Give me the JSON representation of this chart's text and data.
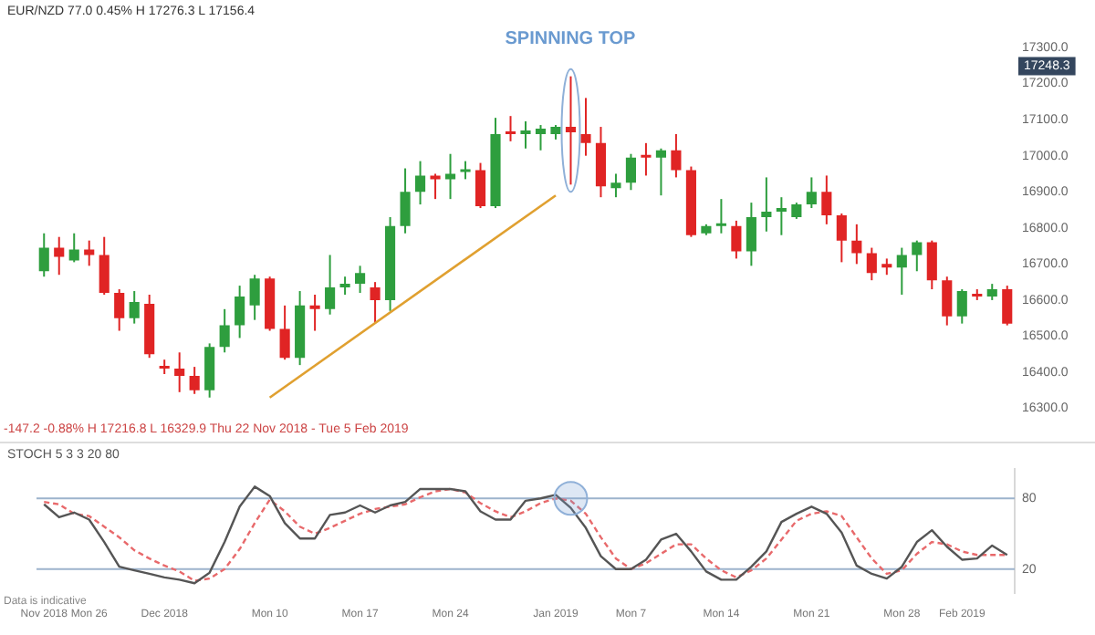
{
  "chart_data": [
    {
      "type": "candlestick",
      "categories": [
        "Nov 2018",
        null,
        null,
        "Mon 26",
        null,
        null,
        null,
        null,
        "Dec 2018",
        null,
        null,
        null,
        null,
        null,
        null,
        "Mon 10",
        null,
        null,
        null,
        null,
        null,
        "Mon 17",
        null,
        null,
        null,
        null,
        null,
        "Mon 24",
        null,
        null,
        null,
        null,
        null,
        null,
        "Jan 2019",
        null,
        null,
        null,
        null,
        "Mon 7",
        null,
        null,
        null,
        null,
        null,
        "Mon 14",
        null,
        null,
        null,
        null,
        null,
        "Mon 21",
        null,
        null,
        null,
        null,
        null,
        "Mon 28",
        null,
        null,
        null,
        "Feb 2019",
        null,
        null,
        null
      ],
      "ohlc": [
        [
          16680,
          16785,
          16665,
          16745
        ],
        [
          16745,
          16775,
          16670,
          16720
        ],
        [
          16710,
          16785,
          16705,
          16740
        ],
        [
          16740,
          16765,
          16695,
          16725
        ],
        [
          16725,
          16775,
          16615,
          16620
        ],
        [
          16620,
          16630,
          16515,
          16550
        ],
        [
          16550,
          16625,
          16535,
          16595
        ],
        [
          16590,
          16615,
          16440,
          16450
        ],
        [
          16415,
          16435,
          16395,
          16410
        ],
        [
          16410,
          16455,
          16345,
          16390
        ],
        [
          16390,
          16415,
          16340,
          16350
        ],
        [
          16350,
          16480,
          16330,
          16470
        ],
        [
          16470,
          16575,
          16455,
          16530
        ],
        [
          16530,
          16640,
          16495,
          16610
        ],
        [
          16585,
          16670,
          16545,
          16660
        ],
        [
          16660,
          16665,
          16515,
          16520
        ],
        [
          16520,
          16585,
          16435,
          16440
        ],
        [
          16440,
          16625,
          16420,
          16585
        ],
        [
          16585,
          16615,
          16515,
          16575
        ],
        [
          16575,
          16725,
          16560,
          16635
        ],
        [
          16635,
          16665,
          16615,
          16645
        ],
        [
          16645,
          16695,
          16620,
          16675
        ],
        [
          16635,
          16650,
          16535,
          16600
        ],
        [
          16600,
          16830,
          16570,
          16805
        ],
        [
          16805,
          16965,
          16785,
          16900
        ],
        [
          16900,
          16985,
          16865,
          16945
        ],
        [
          16945,
          16950,
          16880,
          16935
        ],
        [
          16935,
          17005,
          16880,
          16950
        ],
        [
          16955,
          16985,
          16935,
          16960
        ],
        [
          16960,
          16980,
          16855,
          16860
        ],
        [
          16860,
          17105,
          16855,
          17060
        ],
        [
          17065,
          17110,
          17040,
          17060
        ],
        [
          17060,
          17095,
          17020,
          17070
        ],
        [
          17060,
          17085,
          17015,
          17075
        ],
        [
          17060,
          17085,
          17045,
          17080
        ],
        [
          17080,
          17220,
          16920,
          17065
        ],
        [
          17060,
          17160,
          17000,
          17035
        ],
        [
          17035,
          17080,
          16885,
          16915
        ],
        [
          16910,
          16950,
          16885,
          16925
        ],
        [
          16925,
          17005,
          16905,
          16995
        ],
        [
          17000,
          17035,
          16945,
          16995
        ],
        [
          16995,
          17020,
          16890,
          17015
        ],
        [
          17015,
          17060,
          16940,
          16960
        ],
        [
          16960,
          16970,
          16775,
          16780
        ],
        [
          16785,
          16810,
          16780,
          16805
        ],
        [
          16805,
          16880,
          16785,
          16810
        ],
        [
          16805,
          16820,
          16715,
          16735
        ],
        [
          16735,
          16870,
          16695,
          16830
        ],
        [
          16830,
          16940,
          16790,
          16845
        ],
        [
          16845,
          16885,
          16780,
          16855
        ],
        [
          16830,
          16870,
          16825,
          16865
        ],
        [
          16865,
          16940,
          16855,
          16900
        ],
        [
          16900,
          16945,
          16810,
          16835
        ],
        [
          16835,
          16840,
          16705,
          16765
        ],
        [
          16765,
          16810,
          16700,
          16730
        ],
        [
          16730,
          16745,
          16655,
          16675
        ],
        [
          16700,
          16715,
          16670,
          16690
        ],
        [
          16690,
          16745,
          16615,
          16725
        ],
        [
          16725,
          16765,
          16680,
          16760
        ],
        [
          16760,
          16765,
          16630,
          16655
        ],
        [
          16655,
          16665,
          16530,
          16555
        ],
        [
          16555,
          16630,
          16535,
          16625
        ],
        [
          16615,
          16630,
          16600,
          16610
        ],
        [
          16610,
          16645,
          16600,
          16630
        ],
        [
          16630,
          16640,
          16530,
          16535
        ]
      ],
      "colors": [
        "#2e9e3e",
        "#e02424",
        "#2e9e3e",
        "#e02424",
        "#e02424",
        "#e02424",
        "#2e9e3e",
        "#e02424",
        "#e02424",
        "#e02424",
        "#e02424",
        "#2e9e3e",
        "#2e9e3e",
        "#2e9e3e",
        "#2e9e3e",
        "#e02424",
        "#e02424",
        "#2e9e3e",
        "#e02424",
        "#2e9e3e",
        "#2e9e3e",
        "#2e9e3e",
        "#e02424",
        "#2e9e3e",
        "#2e9e3e",
        "#2e9e3e",
        "#e02424",
        "#2e9e3e",
        "#2e9e3e",
        "#e02424",
        "#2e9e3e",
        "#e02424",
        "#2e9e3e",
        "#2e9e3e",
        "#2e9e3e",
        "#e02424",
        "#e02424",
        "#e02424",
        "#2e9e3e",
        "#2e9e3e",
        "#e02424",
        "#2e9e3e",
        "#e02424",
        "#e02424",
        "#2e9e3e",
        "#2e9e3e",
        "#e02424",
        "#2e9e3e",
        "#2e9e3e",
        "#2e9e3e",
        "#2e9e3e",
        "#2e9e3e",
        "#e02424",
        "#e02424",
        "#e02424",
        "#e02424",
        "#e02424",
        "#2e9e3e",
        "#2e9e3e",
        "#e02424",
        "#e02424",
        "#2e9e3e",
        "#e02424",
        "#2e9e3e",
        "#e02424"
      ],
      "ylim": [
        16300,
        17300
      ],
      "yticks": [
        {
          "value": 16300,
          "label": "16300.0"
        },
        {
          "value": 16400,
          "label": "16400.0"
        },
        {
          "value": 16500,
          "label": "16500.0"
        },
        {
          "value": 16600,
          "label": "16600.0"
        },
        {
          "value": 16700,
          "label": "16700.0"
        },
        {
          "value": 16800,
          "label": "16800.0"
        },
        {
          "value": 16900,
          "label": "16900.0"
        },
        {
          "value": 17000,
          "label": "17000.0"
        },
        {
          "value": 17100,
          "label": "17100.0"
        },
        {
          "value": 17200,
          "label": "17200.0"
        },
        {
          "value": 17300,
          "label": "17300.0"
        }
      ],
      "tick_labels": "y",
      "series": [
        {
          "type": "line",
          "color": "#e0a030",
          "x": [
            "Mon 10",
            "Jan 2019"
          ],
          "values": [
            16330,
            16890
          ]
        }
      ],
      "annotations": [
        "SPINNING TOP",
        {
          "text": "17248.3",
          "y": 17248.3
        },
        "EUR/NZD 77.0 0.45% H 17276.3 L 17156.4",
        "-147.2 -0.88% H 17216.8 L 16329.9 Thu 22 Nov 2018 - Tue 5 Feb 2019"
      ]
    },
    {
      "type": "line",
      "categories": [
        "Nov 2018",
        null,
        null,
        "Mon 26",
        null,
        null,
        null,
        null,
        "Dec 2018",
        null,
        null,
        null,
        null,
        null,
        null,
        "Mon 10",
        null,
        null,
        null,
        null,
        null,
        "Mon 17",
        null,
        null,
        null,
        null,
        null,
        "Mon 24",
        null,
        null,
        null,
        null,
        null,
        null,
        "Jan 2019",
        null,
        null,
        null,
        null,
        "Mon 7",
        null,
        null,
        null,
        null,
        null,
        "Mon 14",
        null,
        null,
        null,
        null,
        null,
        "Mon 21",
        null,
        null,
        null,
        null,
        null,
        "Mon 28",
        null,
        null,
        null,
        "Feb 2019",
        null,
        null,
        null
      ],
      "series": [
        {
          "color": "#555555",
          "line_style": "solid",
          "values": [
            75,
            64,
            68,
            62,
            43,
            22,
            19,
            16,
            13,
            11,
            8,
            17,
            43,
            73,
            90,
            82,
            59,
            46,
            46,
            66,
            68,
            74,
            68,
            74,
            77,
            88,
            88,
            88,
            86,
            69,
            62,
            62,
            78,
            80,
            83,
            72,
            55,
            31,
            20,
            20,
            28,
            45,
            50,
            35,
            18,
            11,
            11,
            22,
            35,
            60,
            67,
            73,
            67,
            51,
            23,
            16,
            12,
            22,
            43,
            53,
            39,
            28,
            29,
            40,
            32
          ]
        },
        {
          "color": "#e8696b",
          "line_style": "dashed",
          "values": [
            77,
            75,
            67,
            65,
            56,
            47,
            36,
            29,
            23,
            18,
            10,
            12,
            20,
            37,
            59,
            79,
            69,
            56,
            50,
            55,
            61,
            67,
            71,
            73,
            75,
            81,
            86,
            88,
            85,
            76,
            69,
            64,
            69,
            76,
            80,
            78,
            67,
            47,
            29,
            20,
            25,
            33,
            41,
            41,
            29,
            19,
            13,
            19,
            29,
            45,
            61,
            67,
            69,
            65,
            47,
            29,
            16,
            19,
            33,
            43,
            41,
            35,
            32,
            32,
            32
          ]
        }
      ],
      "ylim": [
        0,
        105
      ],
      "yticks": [
        20,
        80
      ],
      "marker": "none",
      "ref_lines": [
        {
          "axis": "y",
          "value": 20,
          "color": "#9db3cc"
        },
        {
          "axis": "y",
          "value": 80,
          "color": "#9db3cc"
        }
      ],
      "annotations": [
        "STOCH 5 3 3 20 80",
        "Data is indicative"
      ]
    }
  ]
}
